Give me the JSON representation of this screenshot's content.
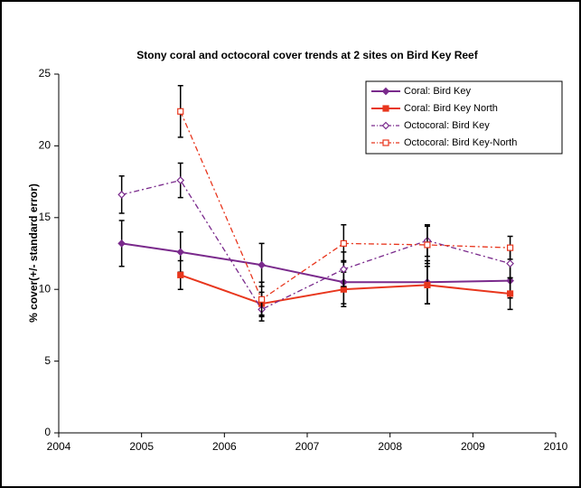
{
  "chart_data": {
    "type": "line",
    "title": "Stony coral and octocoral cover trends at 2 sites on Bird Key Reef",
    "y_label": "% cover(+/- standard error)",
    "x": [
      2004.76,
      2005.47,
      2006.45,
      2007.44,
      2008.45,
      2009.45
    ],
    "xlim": [
      2004,
      2010
    ],
    "xticks": [
      2004,
      2005,
      2006,
      2007,
      2008,
      2009,
      2010
    ],
    "ylim": [
      0,
      25
    ],
    "yticks": [
      0,
      5,
      10,
      15,
      20,
      25
    ],
    "legend": "top-right",
    "series": [
      {
        "name": "Coral: Bird Key",
        "color": "#7a2a8c",
        "dashed": false,
        "marker": "diamond",
        "filled": true,
        "values": [
          13.2,
          12.6,
          11.7,
          10.5,
          10.5,
          10.6
        ],
        "errors": [
          1.6,
          1.4,
          1.5,
          1.5,
          1.5,
          1.2
        ]
      },
      {
        "name": "Coral: Bird Key North",
        "color": "#e8361d",
        "dashed": false,
        "marker": "square",
        "filled": true,
        "values": [
          null,
          11.0,
          9.0,
          10.0,
          10.3,
          9.7
        ],
        "errors": [
          null,
          1.0,
          0.8,
          1.2,
          1.3,
          1.1
        ]
      },
      {
        "name": "Octocoral: Bird Key",
        "color": "#7a2a8c",
        "dashed": true,
        "marker": "diamond",
        "filled": false,
        "values": [
          16.6,
          17.6,
          8.6,
          11.4,
          13.4,
          11.8
        ],
        "errors": [
          1.3,
          1.2,
          0.8,
          1.2,
          1.1,
          1.0
        ]
      },
      {
        "name": "Octocoral: Bird Key-North",
        "color": "#e8361d",
        "dashed": true,
        "marker": "square",
        "filled": false,
        "values": [
          null,
          22.4,
          9.3,
          13.2,
          13.1,
          12.9
        ],
        "errors": [
          null,
          1.8,
          1.2,
          1.3,
          1.3,
          0.8
        ]
      }
    ]
  }
}
